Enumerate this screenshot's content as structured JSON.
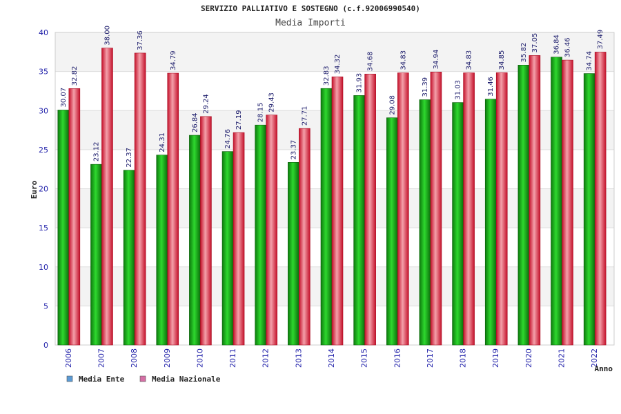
{
  "chart_data": {
    "type": "bar",
    "title": "SERVIZIO PALLIATIVO E SOSTEGNO (c.f.92006990540)",
    "subtitle": "Media Importi",
    "xlabel": "Anno",
    "ylabel": "Euro",
    "ylim": [
      0,
      40
    ],
    "yticks": [
      "0",
      "5",
      "10",
      "15",
      "20",
      "25",
      "30",
      "35",
      "40"
    ],
    "grid": true,
    "legend_position": "bottom-left",
    "categories": [
      "2006",
      "2007",
      "2008",
      "2009",
      "2010",
      "2011",
      "2012",
      "2013",
      "2014",
      "2015",
      "2016",
      "2017",
      "2018",
      "2019",
      "2020",
      "2021",
      "2022"
    ],
    "series": [
      {
        "name": "Media Ente",
        "legend_color": "#5b9bd5",
        "bar_color": "#1aa51a",
        "values": [
          30.07,
          23.12,
          22.37,
          24.31,
          26.84,
          24.76,
          28.15,
          23.37,
          32.83,
          31.93,
          29.08,
          31.39,
          31.03,
          31.46,
          35.82,
          36.84,
          34.74
        ],
        "labels": [
          "30.07",
          "23.12",
          "22.37",
          "24.31",
          "26.84",
          "24.76",
          "28.15",
          "23.37",
          "32.83",
          "31.93",
          "29.08",
          "31.39",
          "31.03",
          "31.46",
          "35.82",
          "36.84",
          "34.74"
        ]
      },
      {
        "name": "Media Nazionale",
        "legend_color": "#d56fa5",
        "bar_color": "#e8203a",
        "values": [
          32.82,
          38.0,
          37.36,
          34.79,
          29.24,
          27.19,
          29.43,
          27.71,
          34.32,
          34.68,
          34.83,
          34.94,
          34.83,
          34.85,
          37.05,
          36.46,
          37.49
        ],
        "labels": [
          "32.82",
          "38.00",
          "37.36",
          "34.79",
          "29.24",
          "27.19",
          "29.43",
          "27.71",
          "34.32",
          "34.68",
          "34.83",
          "34.94",
          "34.83",
          "34.85",
          "37.05",
          "36.46",
          "37.49"
        ]
      }
    ]
  }
}
